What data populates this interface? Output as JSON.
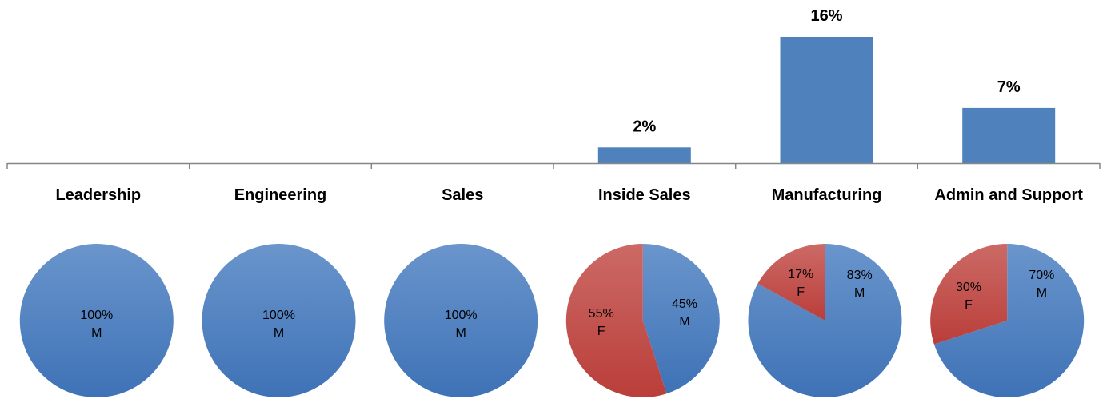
{
  "chart_data": [
    {
      "type": "bar",
      "categories": [
        "Leadership",
        "Engineering",
        "Sales",
        "Inside Sales",
        "Manufacturing",
        "Admin and Support"
      ],
      "values": [
        0,
        0,
        0,
        2,
        16,
        7
      ],
      "value_labels": [
        "",
        "",
        "",
        "2%",
        "16%",
        "7%"
      ],
      "unit": "%",
      "ylim": [
        0,
        18
      ],
      "grid": false,
      "bar_color": "#4F81BD"
    },
    {
      "type": "pie",
      "colors": {
        "M": "#4F81BD",
        "F": "#C0504D"
      },
      "pies": [
        {
          "category": "Leadership",
          "slices": [
            {
              "label": "M",
              "value": 100,
              "pct": "100%"
            }
          ]
        },
        {
          "category": "Engineering",
          "slices": [
            {
              "label": "M",
              "value": 100,
              "pct": "100%"
            }
          ]
        },
        {
          "category": "Sales",
          "slices": [
            {
              "label": "M",
              "value": 100,
              "pct": "100%"
            }
          ]
        },
        {
          "category": "Inside Sales",
          "slices": [
            {
              "label": "M",
              "value": 45,
              "pct": "45%"
            },
            {
              "label": "F",
              "value": 55,
              "pct": "55%"
            }
          ]
        },
        {
          "category": "Manufacturing",
          "slices": [
            {
              "label": "M",
              "value": 83,
              "pct": "83%"
            },
            {
              "label": "F",
              "value": 17,
              "pct": "17%"
            }
          ]
        },
        {
          "category": "Admin and Support",
          "slices": [
            {
              "label": "M",
              "value": 70,
              "pct": "70%"
            },
            {
              "label": "F",
              "value": 30,
              "pct": "30%"
            }
          ]
        }
      ]
    }
  ]
}
